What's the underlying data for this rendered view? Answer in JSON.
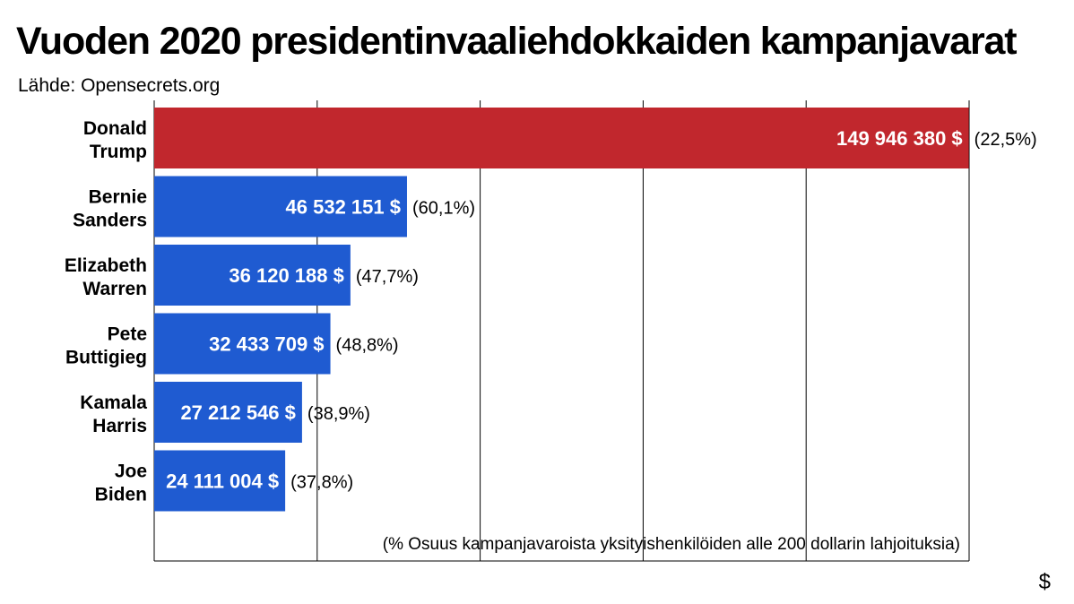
{
  "title": "Vuoden 2020 presidentinvaaliehdokkaiden kampanjavarat",
  "source": "Lähde: Opensecrets.org",
  "unit": "$",
  "chart_data": {
    "type": "bar",
    "orientation": "horizontal",
    "title": "Vuoden 2020 presidentinvaaliehdokkaiden kampanjavarat",
    "subtitle": "Lähde: Opensecrets.org",
    "xlabel": "$",
    "ylabel": "",
    "xlim": [
      0,
      150000000
    ],
    "grid": true,
    "note": "(% Osuus kampanjavaroista yksityishenkilöiden alle 200 dollarin lahjoituksia)",
    "categories": [
      [
        "Donald",
        "Trump"
      ],
      [
        "Bernie",
        "Sanders"
      ],
      [
        "Elizabeth",
        "Warren"
      ],
      [
        "Pete",
        "Buttigieg"
      ],
      [
        "Kamala",
        "Harris"
      ],
      [
        "Joe",
        "Biden"
      ]
    ],
    "values": [
      149946380,
      46532151,
      36120188,
      32433709,
      27212546,
      24111004
    ],
    "value_labels": [
      "149 946 380 $",
      "46 532 151 $",
      "36 120 188 $",
      "32 433 709 $",
      "27 212 546 $",
      "24 111 004 $"
    ],
    "pct_labels": [
      "(22,5%)",
      "(60,1%)",
      "(47,7%)",
      "(48,8%)",
      "(38,9%)",
      "(37,8%)"
    ],
    "small_donor_share_pct": [
      22.5,
      60.1,
      47.7,
      48.8,
      38.9,
      37.8
    ],
    "colors": [
      "#c1272d",
      "#1f5bd1",
      "#1f5bd1",
      "#1f5bd1",
      "#1f5bd1",
      "#1f5bd1"
    ],
    "gridline_color": "#000000"
  }
}
